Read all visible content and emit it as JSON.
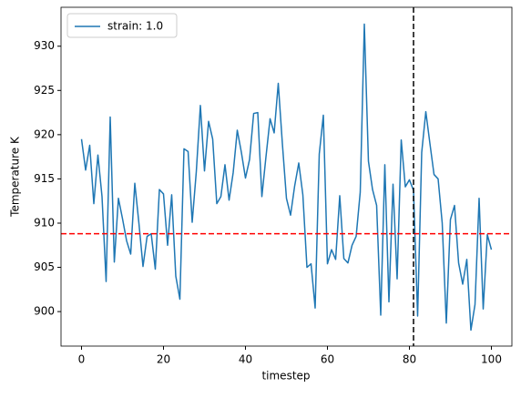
{
  "chart_data": {
    "type": "line",
    "xlabel": "timestep",
    "ylabel": "Temperature K",
    "x": [
      0,
      1,
      2,
      3,
      4,
      5,
      6,
      7,
      8,
      9,
      10,
      11,
      12,
      13,
      14,
      15,
      16,
      17,
      18,
      19,
      20,
      21,
      22,
      23,
      24,
      25,
      26,
      27,
      28,
      29,
      30,
      31,
      32,
      33,
      34,
      35,
      36,
      37,
      38,
      39,
      40,
      41,
      42,
      43,
      44,
      45,
      46,
      47,
      48,
      49,
      50,
      51,
      52,
      53,
      54,
      55,
      56,
      57,
      58,
      59,
      60,
      61,
      62,
      63,
      64,
      65,
      66,
      67,
      68,
      69,
      70,
      71,
      72,
      73,
      74,
      75,
      76,
      77,
      78,
      79,
      80,
      81,
      82,
      83,
      84,
      85,
      86,
      87,
      88,
      89,
      90,
      91,
      92,
      93,
      94,
      95,
      96,
      97,
      98,
      99,
      100
    ],
    "series": [
      {
        "name": "strain: 1.0",
        "color": "#1f77b4",
        "values": [
          919.5,
          916,
          918.8,
          912.2,
          917.7,
          913,
          903.4,
          922,
          905.6,
          912.8,
          910.5,
          908,
          906.5,
          914.5,
          910,
          905.1,
          908.5,
          908.8,
          904.8,
          913.8,
          913.3,
          907.5,
          913.2,
          904,
          901.4,
          918.4,
          918.1,
          910.1,
          915.8,
          923.3,
          915.9,
          921.5,
          919.5,
          912.2,
          913,
          916.6,
          912.6,
          915.7,
          920.5,
          918,
          915.1,
          917.2,
          922.4,
          922.5,
          913,
          917.5,
          921.8,
          920.2,
          925.8,
          919,
          912.8,
          910.9,
          914.2,
          916.8,
          913.2,
          905,
          905.4,
          900.4,
          917.8,
          922.2,
          905.4,
          907,
          905.9,
          913.1,
          906,
          905.5,
          907.5,
          908.5,
          913.5,
          932.5,
          917,
          913.8,
          912,
          899.6,
          916.6,
          901.1,
          914.4,
          903.7,
          919.4,
          914.1,
          914.9,
          913.7,
          899.5,
          918,
          922.6,
          919,
          915.5,
          915,
          910,
          898.7,
          910.4,
          912,
          905.5,
          903.1,
          905.9,
          897.9,
          900.8,
          912.8,
          900.3,
          908.7,
          907
        ]
      }
    ],
    "hline": {
      "y": 908.8,
      "color": "#ff0000"
    },
    "vline": {
      "x": 81,
      "color": "#000000"
    },
    "xlim": [
      -5,
      105
    ],
    "ylim": [
      896.1,
      934.4
    ],
    "xticks": [
      0,
      20,
      40,
      60,
      80,
      100
    ],
    "yticks": [
      900,
      905,
      910,
      915,
      920,
      925,
      930
    ],
    "legend": "upper left",
    "grid": false
  }
}
